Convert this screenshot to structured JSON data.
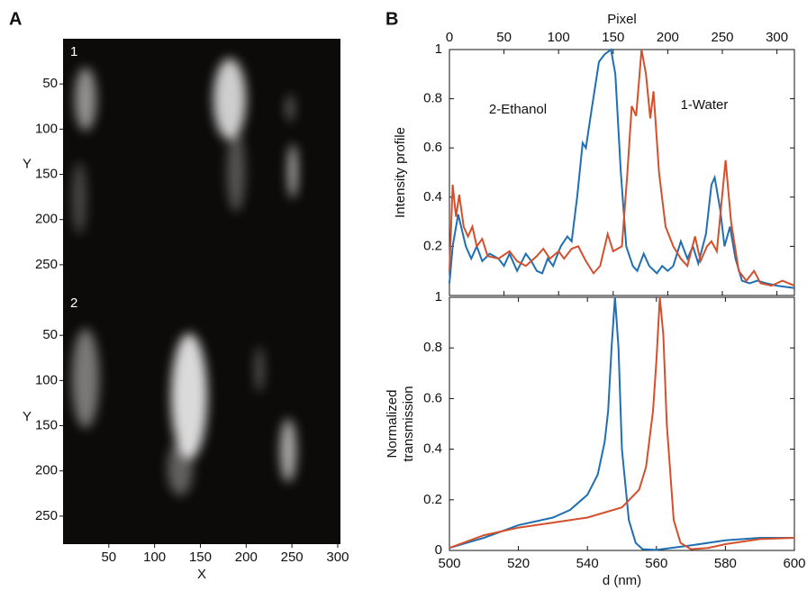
{
  "chart_data": [
    {
      "type": "image",
      "panel": "A",
      "label": "1",
      "ylabel": "Y",
      "ylim": [
        0,
        278
      ],
      "yticks": [
        50,
        100,
        150,
        200,
        250
      ],
      "xlim": [
        0,
        303
      ]
    },
    {
      "type": "image",
      "label": "2",
      "ylabel": "Y",
      "xlabel": "X",
      "ylim": [
        0,
        281
      ],
      "yticks": [
        50,
        100,
        150,
        200,
        250
      ],
      "xlim": [
        0,
        303
      ],
      "xticks": [
        50,
        100,
        150,
        200,
        250,
        300
      ]
    },
    {
      "type": "line",
      "panel": "B",
      "xlabel": "Pixel",
      "ylabel": "Intensity profile",
      "xlim": [
        0,
        316
      ],
      "xticks": [
        0,
        50,
        100,
        150,
        200,
        250,
        300
      ],
      "ylim": [
        0,
        1
      ],
      "yticks": [
        0.2,
        0.4,
        0.6,
        0.8,
        1
      ],
      "series": [
        {
          "name": "2-Ethanol",
          "color": "#1f6fb2",
          "x": [
            0,
            3,
            8,
            15,
            20,
            25,
            30,
            37,
            45,
            50,
            55,
            62,
            70,
            75,
            80,
            85,
            90,
            95,
            102,
            108,
            112,
            117,
            122,
            125,
            130,
            137,
            142,
            148,
            152,
            157,
            162,
            168,
            172,
            178,
            183,
            190,
            195,
            200,
            205,
            212,
            218,
            223,
            228,
            235,
            240,
            243,
            248,
            252,
            257,
            262,
            268,
            275,
            282,
            290,
            300,
            316
          ],
          "values": [
            0.05,
            0.2,
            0.33,
            0.2,
            0.15,
            0.2,
            0.14,
            0.17,
            0.15,
            0.12,
            0.17,
            0.1,
            0.17,
            0.14,
            0.1,
            0.09,
            0.15,
            0.12,
            0.2,
            0.24,
            0.22,
            0.4,
            0.62,
            0.6,
            0.75,
            0.95,
            0.98,
            1,
            0.9,
            0.5,
            0.2,
            0.12,
            0.1,
            0.17,
            0.12,
            0.09,
            0.12,
            0.1,
            0.12,
            0.22,
            0.15,
            0.2,
            0.13,
            0.25,
            0.45,
            0.48,
            0.35,
            0.2,
            0.28,
            0.15,
            0.06,
            0.05,
            0.06,
            0.05,
            0.04,
            0.03
          ]
        },
        {
          "name": "1-Water",
          "color": "#d4502c",
          "x": [
            0,
            3,
            6,
            9,
            13,
            17,
            21,
            25,
            30,
            35,
            45,
            55,
            62,
            70,
            80,
            86,
            92,
            100,
            105,
            112,
            118,
            125,
            132,
            138,
            145,
            150,
            158,
            163,
            167,
            171,
            176,
            180,
            184,
            187,
            192,
            198,
            205,
            212,
            218,
            225,
            230,
            236,
            240,
            245,
            253,
            258,
            265,
            272,
            279,
            285,
            295,
            305,
            316
          ],
          "values": [
            0.1,
            0.45,
            0.32,
            0.41,
            0.28,
            0.24,
            0.28,
            0.2,
            0.23,
            0.16,
            0.15,
            0.18,
            0.14,
            0.12,
            0.16,
            0.19,
            0.15,
            0.18,
            0.15,
            0.19,
            0.2,
            0.14,
            0.09,
            0.12,
            0.25,
            0.18,
            0.2,
            0.5,
            0.77,
            0.73,
            1,
            0.9,
            0.72,
            0.83,
            0.5,
            0.28,
            0.2,
            0.15,
            0.12,
            0.24,
            0.14,
            0.2,
            0.22,
            0.18,
            0.55,
            0.3,
            0.1,
            0.06,
            0.1,
            0.05,
            0.04,
            0.06,
            0.04
          ]
        }
      ]
    },
    {
      "type": "line",
      "xlabel": "d (nm)",
      "ylabel": [
        "Normalized",
        "transmission"
      ],
      "xlim": [
        500,
        600
      ],
      "xticks": [
        500,
        520,
        540,
        560,
        580,
        600
      ],
      "ylim": [
        0,
        1
      ],
      "yticks": [
        0,
        0.2,
        0.4,
        0.6,
        0.8,
        1
      ],
      "series": [
        {
          "color": "#1f6fb2",
          "x": [
            500,
            510,
            520,
            530,
            535,
            540,
            543,
            545,
            546,
            547,
            548,
            549,
            550,
            552,
            554,
            556,
            560,
            570,
            580,
            590,
            600
          ],
          "values": [
            0.01,
            0.05,
            0.1,
            0.13,
            0.16,
            0.22,
            0.3,
            0.43,
            0.55,
            0.8,
            1,
            0.8,
            0.4,
            0.12,
            0.03,
            0.005,
            0.002,
            0.02,
            0.04,
            0.05,
            0.05
          ]
        },
        {
          "color": "#d4502c",
          "x": [
            500,
            510,
            520,
            530,
            540,
            550,
            555,
            557,
            559,
            560,
            561,
            562,
            563,
            565,
            567,
            570,
            575,
            580,
            590,
            600
          ],
          "values": [
            0.01,
            0.06,
            0.09,
            0.11,
            0.13,
            0.17,
            0.24,
            0.33,
            0.55,
            0.75,
            1,
            0.85,
            0.5,
            0.12,
            0.03,
            0.005,
            0.01,
            0.025,
            0.045,
            0.05
          ]
        }
      ]
    }
  ]
}
